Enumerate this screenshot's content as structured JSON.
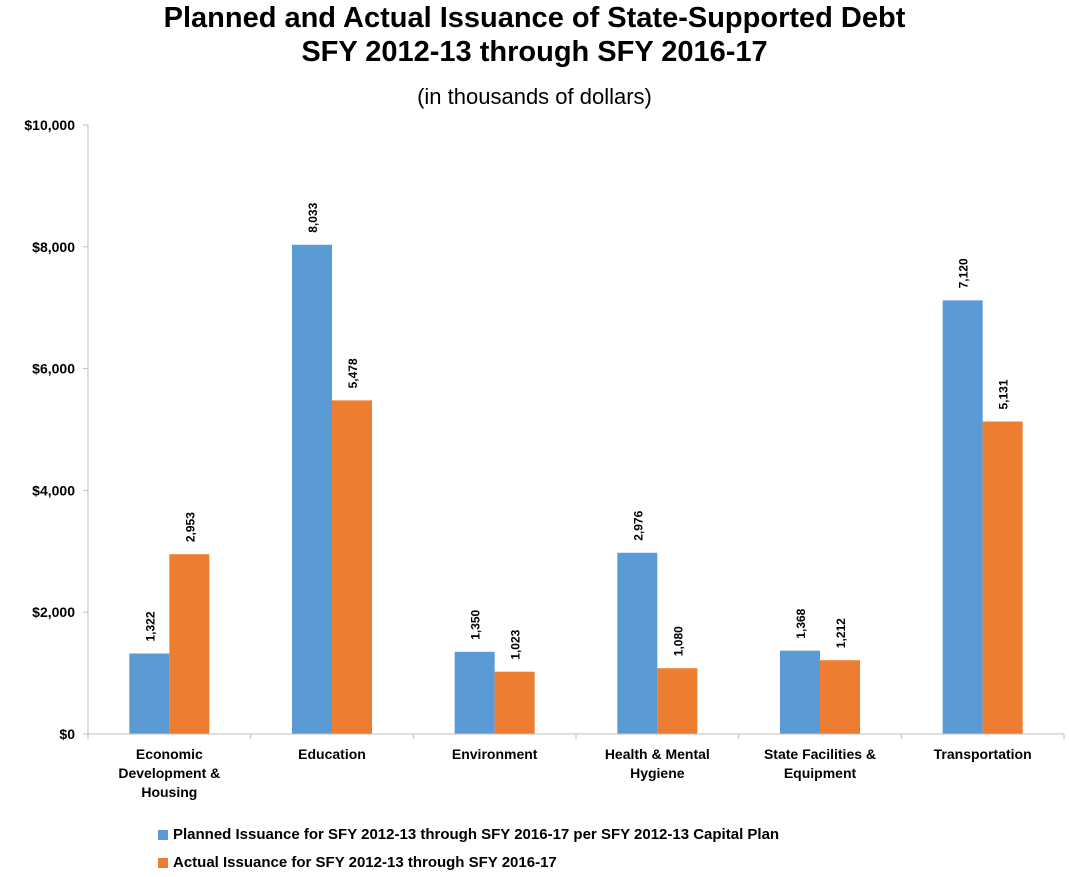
{
  "title_line1": "Planned and Actual Issuance of State-Supported Debt",
  "title_line2": "SFY 2012-13 through SFY 2016-17",
  "subtitle": "(in thousands of dollars)",
  "chart_data": {
    "type": "bar",
    "categories": [
      [
        "Economic",
        "Development &",
        "Housing"
      ],
      [
        "Education"
      ],
      [
        "Environment"
      ],
      [
        "Health & Mental",
        "Hygiene"
      ],
      [
        "State Facilities &",
        "Equipment"
      ],
      [
        "Transportation"
      ]
    ],
    "series": [
      {
        "name": "Planned Issuance for SFY 2012-13 through SFY 2016-17 per SFY 2012-13 Capital Plan",
        "values": [
          1322,
          8033,
          1350,
          2976,
          1368,
          7120
        ],
        "labels": [
          "1,322",
          "8,033",
          "1,350",
          "2,976",
          "1,368",
          "7,120"
        ],
        "color": "#5b9bd5"
      },
      {
        "name": "Actual Issuance for SFY 2012-13 through SFY 2016-17",
        "values": [
          2953,
          5478,
          1023,
          1080,
          1212,
          5131
        ],
        "labels": [
          "2,953",
          "5,478",
          "1,023",
          "1,080",
          "1,212",
          "5,131"
        ],
        "color": "#ed7d31"
      }
    ],
    "yticks": [
      0,
      2000,
      4000,
      6000,
      8000,
      10000
    ],
    "ytick_labels": [
      "$0",
      "$2,000",
      "$4,000",
      "$6,000",
      "$8,000",
      "$10,000"
    ],
    "ylim": [
      0,
      10000
    ],
    "grid": false,
    "legend_position": "bottom"
  }
}
